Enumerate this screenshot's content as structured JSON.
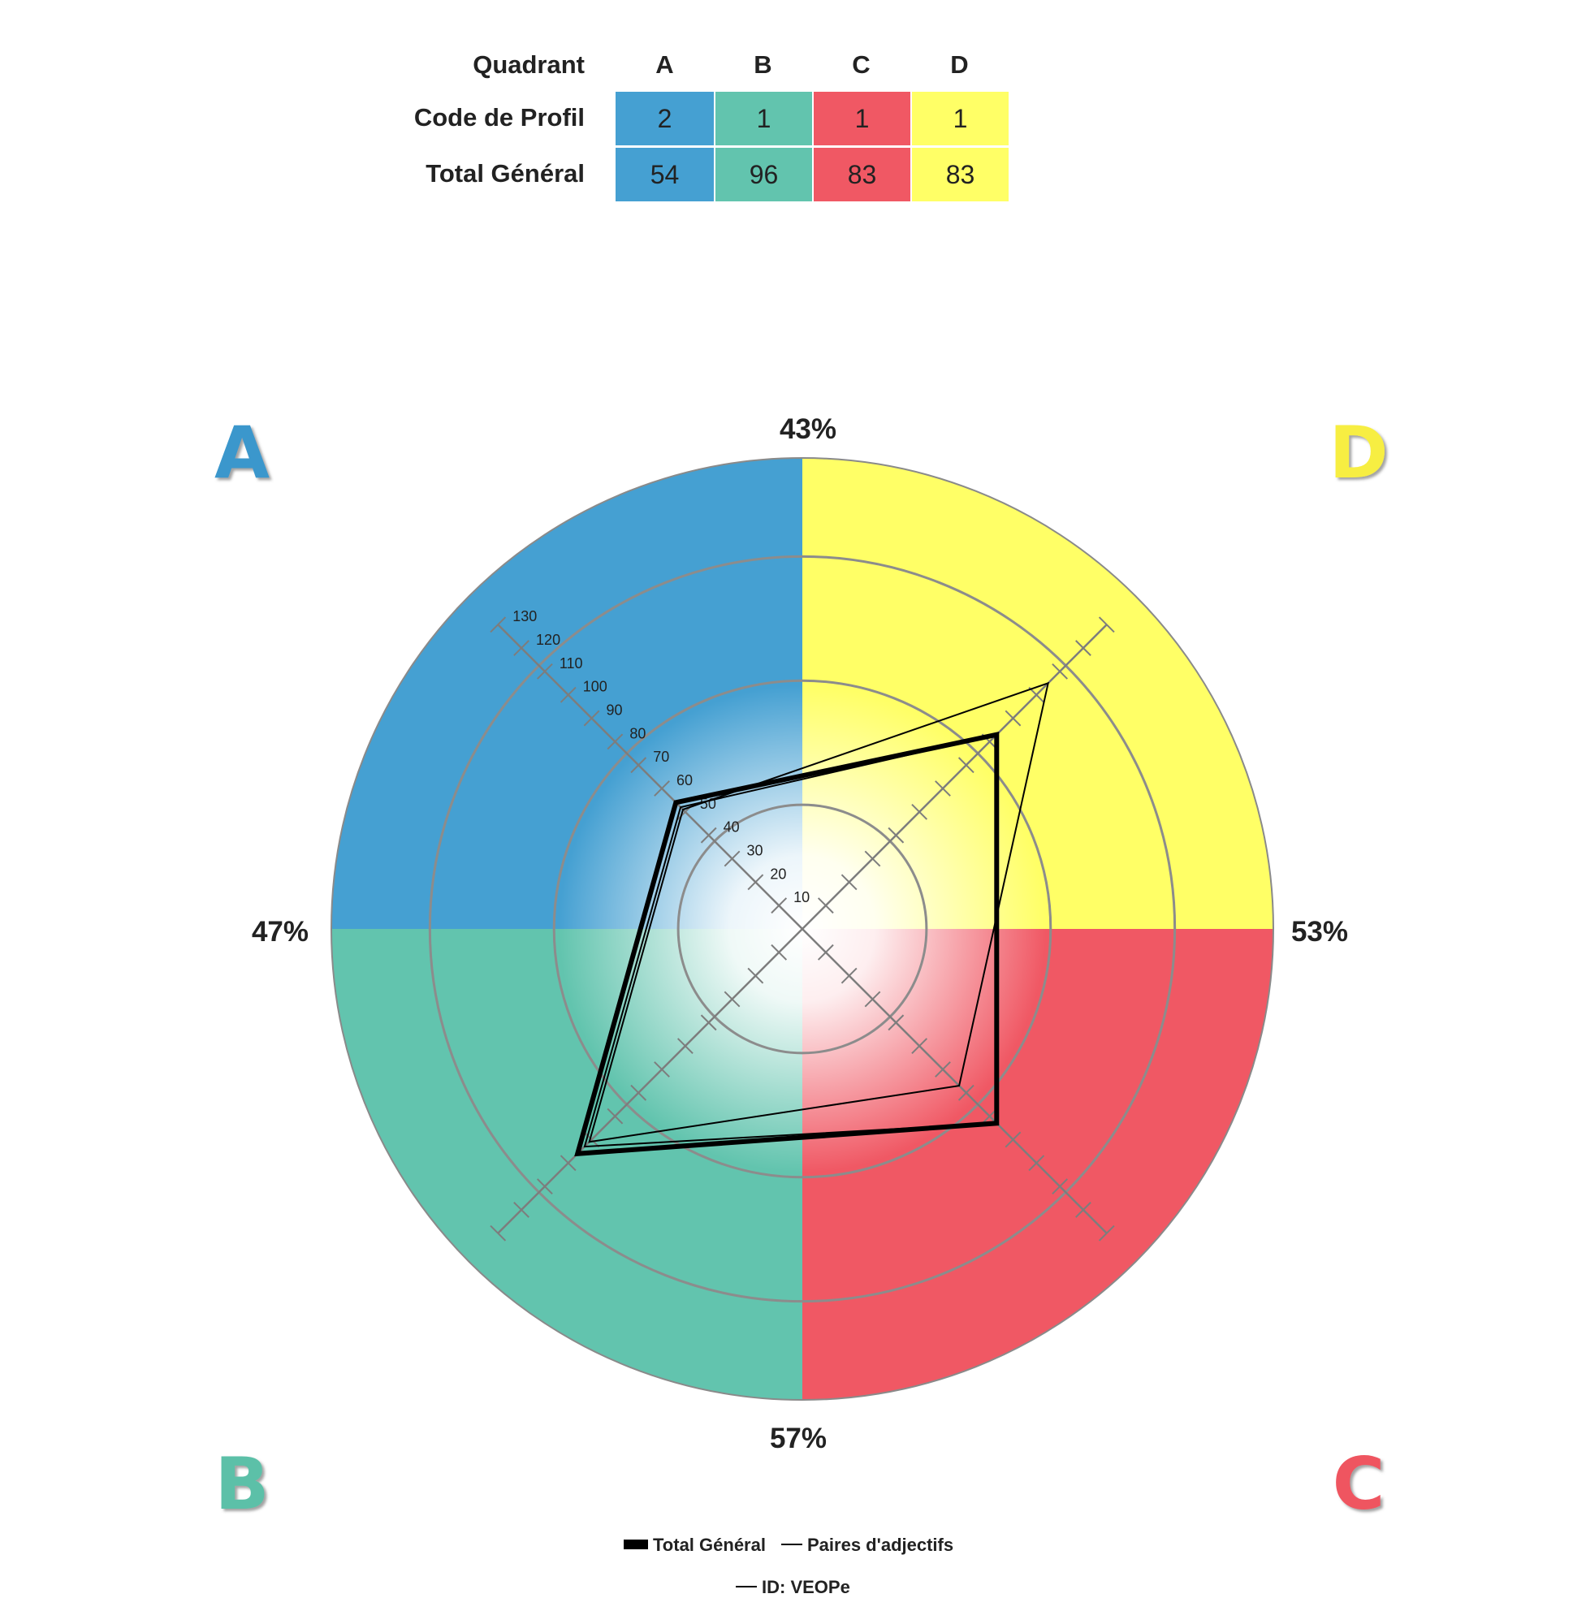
{
  "table": {
    "row_header_quadrant": "Quadrant",
    "row_header_code": "Code de Profil",
    "row_header_total": "Total Général",
    "columns": [
      {
        "label": "A",
        "code": "2",
        "total": "54",
        "color": "#45a0d2"
      },
      {
        "label": "B",
        "code": "1",
        "total": "96",
        "color": "#62c4ae"
      },
      {
        "label": "C",
        "code": "1",
        "total": "83",
        "color": "#f05864"
      },
      {
        "label": "D",
        "code": "1",
        "total": "83",
        "color": "#ffff66"
      }
    ]
  },
  "chart_data": {
    "type": "radar",
    "quadrants": [
      {
        "name": "A",
        "position": "top-left",
        "color": "#45a0d2",
        "letter_color": "#3b97cc"
      },
      {
        "name": "B",
        "position": "bottom-left",
        "color": "#62c4ae",
        "letter_color": "#5cc0a8"
      },
      {
        "name": "C",
        "position": "bottom-right",
        "color": "#f05864",
        "letter_color": "#ef5560"
      },
      {
        "name": "D",
        "position": "top-right",
        "color": "#ffff66",
        "letter_color": "#f7ee43"
      }
    ],
    "axes": [
      "A",
      "D",
      "C",
      "B"
    ],
    "radial_range": [
      0,
      130
    ],
    "radial_ticks": [
      10,
      20,
      30,
      40,
      50,
      60,
      70,
      80,
      90,
      100,
      110,
      120,
      130
    ],
    "percent_labels": {
      "top": "43%",
      "left": "47%",
      "right": "53%",
      "bottom": "57%"
    },
    "series": [
      {
        "name": "Total Général",
        "style": "thick",
        "values": {
          "A": 54,
          "B": 96,
          "C": 83,
          "D": 83
        }
      },
      {
        "name": "Paires d'adjectifs",
        "style": "thin",
        "values": {
          "A": 51,
          "B": 91,
          "C": 67,
          "D": 105
        }
      },
      {
        "name": "ID: VEOPe",
        "style": "thin",
        "values": {
          "A": 52,
          "B": 93,
          "C": 83,
          "D": 83
        }
      }
    ],
    "legend": {
      "position": "bottom-center",
      "entries": [
        "Total Général",
        "Paires d'adjectifs",
        "ID: VEOPe"
      ]
    }
  }
}
